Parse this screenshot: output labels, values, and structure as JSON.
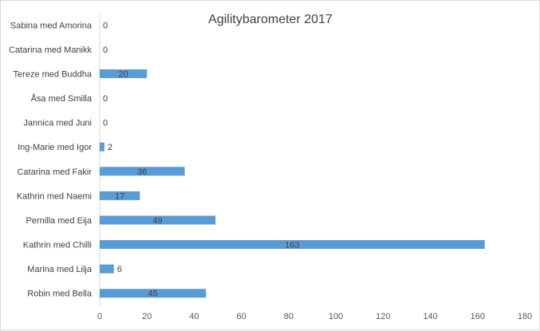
{
  "chart_data": {
    "type": "bar",
    "orientation": "horizontal",
    "title": "Agilitybarometer 2017",
    "xlabel": "",
    "ylabel": "",
    "categories": [
      "Robin med Bella",
      "Marina med Lilja",
      "Kathrin med Chilli",
      "Pernilla med Eija",
      "Kathrin med Naemi",
      "Catarina med Fakir",
      "Ing-Marie med Igor",
      "Jannica med Juni",
      "Åsa med Smilla",
      "Tereze med Buddha",
      "Catarina med Manikk",
      "Sabina med Amorina"
    ],
    "values": [
      45,
      6,
      163,
      49,
      17,
      36,
      2,
      0,
      0,
      20,
      0,
      0
    ],
    "xlim": [
      0,
      180
    ],
    "xticks": [
      0,
      20,
      40,
      60,
      80,
      100,
      120,
      140,
      160,
      180
    ],
    "grid": false,
    "legend": "none",
    "bar_color": "#5b9bd5",
    "data_labels": true
  }
}
